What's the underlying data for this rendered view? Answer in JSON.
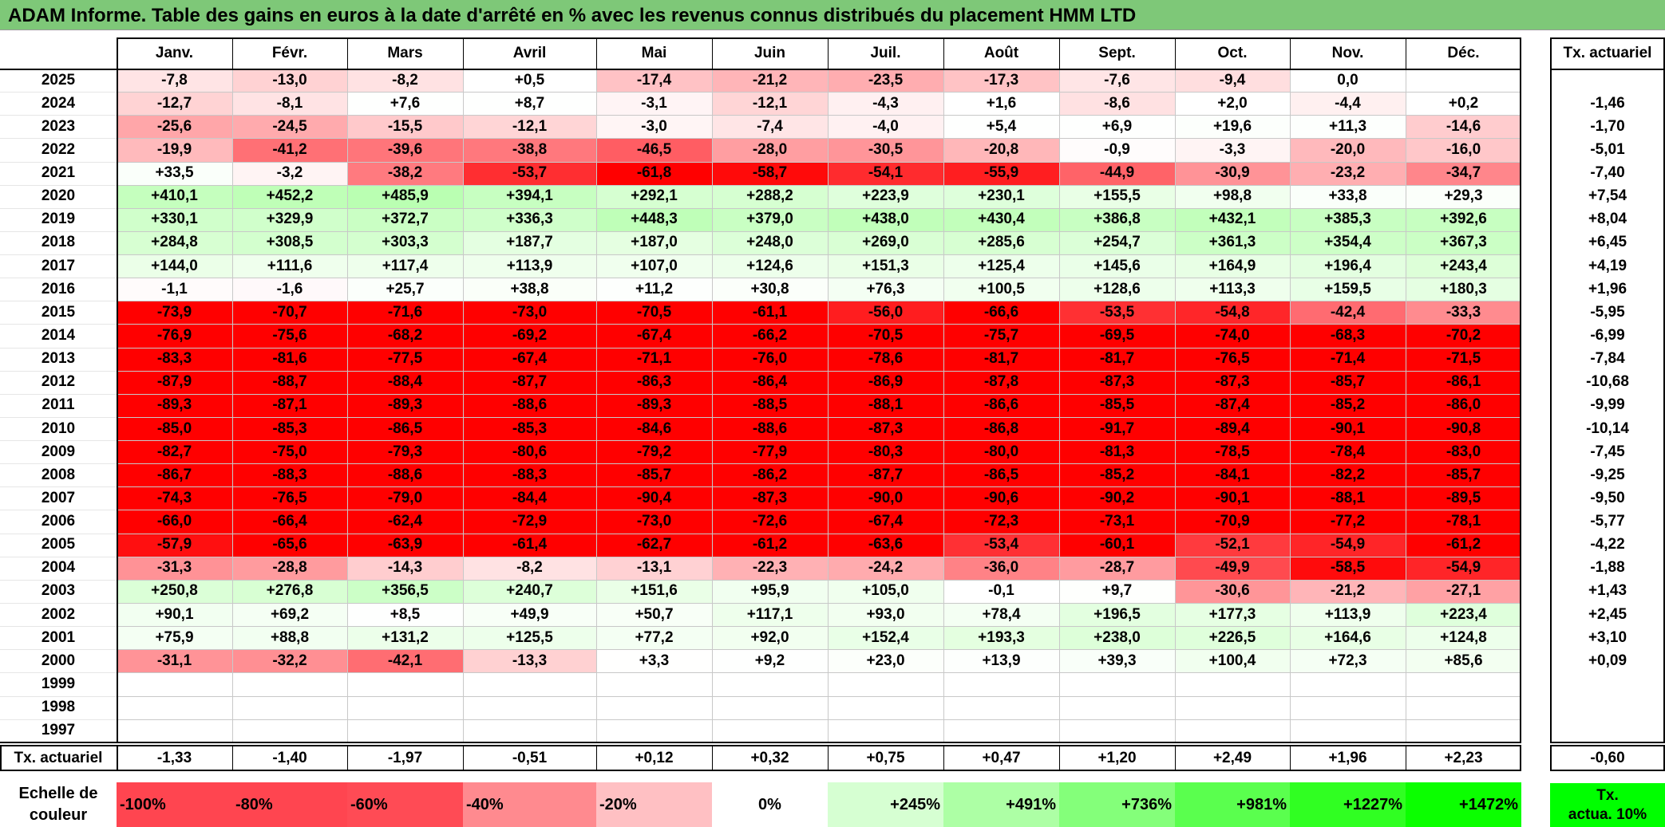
{
  "title": "ADAM Informe. Table des gains en euros à la date d'arrêté en % avec les revenus connus distribués du placement HMM LTD",
  "chart_data": {
    "type": "heatmap",
    "months": [
      "Janv.",
      "Févr.",
      "Mars",
      "Avril",
      "Mai",
      "Juin",
      "Juil.",
      "Août",
      "Sept.",
      "Oct.",
      "Nov.",
      "Déc."
    ],
    "annual_header": "Tx. actuariel",
    "rows": [
      {
        "year": "2025",
        "values": [
          "-7,8",
          "-13,0",
          "-8,2",
          "+0,5",
          "-17,4",
          "-21,2",
          "-23,5",
          "-17,3",
          "-7,6",
          "-9,4",
          "0,0",
          ""
        ],
        "annual": ""
      },
      {
        "year": "2024",
        "values": [
          "-12,7",
          "-8,1",
          "+7,6",
          "+8,7",
          "-3,1",
          "-12,1",
          "-4,3",
          "+1,6",
          "-8,6",
          "+2,0",
          "-4,4",
          "+0,2"
        ],
        "annual": "-1,46"
      },
      {
        "year": "2023",
        "values": [
          "-25,6",
          "-24,5",
          "-15,5",
          "-12,1",
          "-3,0",
          "-7,4",
          "-4,0",
          "+5,4",
          "+6,9",
          "+19,6",
          "+11,3",
          "-14,6"
        ],
        "annual": "-1,70"
      },
      {
        "year": "2022",
        "values": [
          "-19,9",
          "-41,2",
          "-39,6",
          "-38,8",
          "-46,5",
          "-28,0",
          "-30,5",
          "-20,8",
          "-0,9",
          "-3,3",
          "-20,0",
          "-16,0"
        ],
        "annual": "-5,01"
      },
      {
        "year": "2021",
        "values": [
          "+33,5",
          "-3,2",
          "-38,2",
          "-53,7",
          "-61,8",
          "-58,7",
          "-54,1",
          "-55,9",
          "-44,9",
          "-30,9",
          "-23,2",
          "-34,7"
        ],
        "annual": "-7,40"
      },
      {
        "year": "2020",
        "values": [
          "+410,1",
          "+452,2",
          "+485,9",
          "+394,1",
          "+292,1",
          "+288,2",
          "+223,9",
          "+230,1",
          "+155,5",
          "+98,8",
          "+33,8",
          "+29,3"
        ],
        "annual": "+7,54"
      },
      {
        "year": "2019",
        "values": [
          "+330,1",
          "+329,9",
          "+372,7",
          "+336,3",
          "+448,3",
          "+379,0",
          "+438,0",
          "+430,4",
          "+386,8",
          "+432,1",
          "+385,3",
          "+392,6"
        ],
        "annual": "+8,04"
      },
      {
        "year": "2018",
        "values": [
          "+284,8",
          "+308,5",
          "+303,3",
          "+187,7",
          "+187,0",
          "+248,0",
          "+269,0",
          "+285,6",
          "+254,7",
          "+361,3",
          "+354,4",
          "+367,3"
        ],
        "annual": "+6,45"
      },
      {
        "year": "2017",
        "values": [
          "+144,0",
          "+111,6",
          "+117,4",
          "+113,9",
          "+107,0",
          "+124,6",
          "+151,3",
          "+125,4",
          "+145,6",
          "+164,9",
          "+196,4",
          "+243,4"
        ],
        "annual": "+4,19"
      },
      {
        "year": "2016",
        "values": [
          "-1,1",
          "-1,6",
          "+25,7",
          "+38,8",
          "+11,2",
          "+30,8",
          "+76,3",
          "+100,5",
          "+128,6",
          "+113,3",
          "+159,5",
          "+180,3"
        ],
        "annual": "+1,96"
      },
      {
        "year": "2015",
        "values": [
          "-73,9",
          "-70,7",
          "-71,6",
          "-73,0",
          "-70,5",
          "-61,1",
          "-56,0",
          "-66,6",
          "-53,5",
          "-54,8",
          "-42,4",
          "-33,3"
        ],
        "annual": "-5,95"
      },
      {
        "year": "2014",
        "values": [
          "-76,9",
          "-75,6",
          "-68,2",
          "-69,2",
          "-67,4",
          "-66,2",
          "-70,5",
          "-75,7",
          "-69,5",
          "-74,0",
          "-68,3",
          "-70,2"
        ],
        "annual": "-6,99"
      },
      {
        "year": "2013",
        "values": [
          "-83,3",
          "-81,6",
          "-77,5",
          "-67,4",
          "-71,1",
          "-76,0",
          "-78,6",
          "-81,7",
          "-81,7",
          "-76,5",
          "-71,4",
          "-71,5"
        ],
        "annual": "-7,84"
      },
      {
        "year": "2012",
        "values": [
          "-87,9",
          "-88,7",
          "-88,4",
          "-87,7",
          "-86,3",
          "-86,4",
          "-86,9",
          "-87,8",
          "-87,3",
          "-87,3",
          "-85,7",
          "-86,1"
        ],
        "annual": "-10,68"
      },
      {
        "year": "2011",
        "values": [
          "-89,3",
          "-87,1",
          "-89,3",
          "-88,6",
          "-89,3",
          "-88,5",
          "-88,1",
          "-86,6",
          "-85,5",
          "-87,4",
          "-85,2",
          "-86,0"
        ],
        "annual": "-9,99"
      },
      {
        "year": "2010",
        "values": [
          "-85,0",
          "-85,3",
          "-86,5",
          "-85,3",
          "-84,6",
          "-88,6",
          "-87,3",
          "-86,8",
          "-91,7",
          "-89,4",
          "-90,1",
          "-90,8"
        ],
        "annual": "-10,14"
      },
      {
        "year": "2009",
        "values": [
          "-82,7",
          "-75,0",
          "-79,3",
          "-80,6",
          "-79,2",
          "-77,9",
          "-80,3",
          "-80,0",
          "-81,3",
          "-78,5",
          "-78,4",
          "-83,0"
        ],
        "annual": "-7,45"
      },
      {
        "year": "2008",
        "values": [
          "-86,7",
          "-88,3",
          "-88,6",
          "-88,3",
          "-85,7",
          "-86,2",
          "-87,7",
          "-86,5",
          "-85,2",
          "-84,1",
          "-82,2",
          "-85,7"
        ],
        "annual": "-9,25"
      },
      {
        "year": "2007",
        "values": [
          "-74,3",
          "-76,5",
          "-79,0",
          "-84,4",
          "-90,4",
          "-87,3",
          "-90,0",
          "-90,6",
          "-90,2",
          "-90,1",
          "-88,1",
          "-89,5"
        ],
        "annual": "-9,50"
      },
      {
        "year": "2006",
        "values": [
          "-66,0",
          "-66,4",
          "-62,4",
          "-72,9",
          "-73,0",
          "-72,6",
          "-67,4",
          "-72,3",
          "-73,1",
          "-70,9",
          "-77,2",
          "-78,1"
        ],
        "annual": "-5,77"
      },
      {
        "year": "2005",
        "values": [
          "-57,9",
          "-65,6",
          "-63,9",
          "-61,4",
          "-62,7",
          "-61,2",
          "-63,6",
          "-53,4",
          "-60,1",
          "-52,1",
          "-54,9",
          "-61,2"
        ],
        "annual": "-4,22"
      },
      {
        "year": "2004",
        "values": [
          "-31,3",
          "-28,8",
          "-14,3",
          "-8,2",
          "-13,1",
          "-22,3",
          "-24,2",
          "-36,0",
          "-28,7",
          "-49,9",
          "-58,5",
          "-54,9"
        ],
        "annual": "-1,88"
      },
      {
        "year": "2003",
        "values": [
          "+250,8",
          "+276,8",
          "+356,5",
          "+240,7",
          "+151,6",
          "+95,9",
          "+105,0",
          "-0,1",
          "+9,7",
          "-30,6",
          "-21,2",
          "-27,1"
        ],
        "annual": "+1,43"
      },
      {
        "year": "2002",
        "values": [
          "+90,1",
          "+69,2",
          "+8,5",
          "+49,9",
          "+50,7",
          "+117,1",
          "+93,0",
          "+78,4",
          "+196,5",
          "+177,3",
          "+113,9",
          "+223,4"
        ],
        "annual": "+2,45"
      },
      {
        "year": "2001",
        "values": [
          "+75,9",
          "+88,8",
          "+131,2",
          "+125,5",
          "+77,2",
          "+92,0",
          "+152,4",
          "+193,3",
          "+238,0",
          "+226,5",
          "+164,6",
          "+124,8"
        ],
        "annual": "+3,10"
      },
      {
        "year": "2000",
        "values": [
          "-31,1",
          "-32,2",
          "-42,1",
          "-13,3",
          "+3,3",
          "+9,2",
          "+23,0",
          "+13,9",
          "+39,3",
          "+100,4",
          "+72,3",
          "+85,6"
        ],
        "annual": "+0,09"
      },
      {
        "year": "1999",
        "values": [
          "",
          "",
          "",
          "",
          "",
          "",
          "",
          "",
          "",
          "",
          "",
          ""
        ],
        "annual": ""
      },
      {
        "year": "1998",
        "values": [
          "",
          "",
          "",
          "",
          "",
          "",
          "",
          "",
          "",
          "",
          "",
          ""
        ],
        "annual": ""
      },
      {
        "year": "1997",
        "values": [
          "",
          "",
          "",
          "",
          "",
          "",
          "",
          "",
          "",
          "",
          "",
          ""
        ],
        "annual": ""
      }
    ],
    "footer": {
      "label": "Tx. actuariel",
      "values": [
        "-1,33",
        "-1,40",
        "-1,97",
        "-0,51",
        "+0,12",
        "+0,32",
        "+0,75",
        "+0,47",
        "+1,20",
        "+2,49",
        "+1,96",
        "+2,23"
      ],
      "annual": "-0,60"
    },
    "legend": {
      "label_line1": "Echelle de",
      "label_line2": "couleur",
      "stops": [
        {
          "label": "-100%",
          "color": "#ff4550"
        },
        {
          "label": "-80%",
          "color": "#ff4550"
        },
        {
          "label": "-60%",
          "color": "#ff4b55"
        },
        {
          "label": "-40%",
          "color": "#ff8a8f"
        },
        {
          "label": "-20%",
          "color": "#ffc0c3"
        },
        {
          "label": "0%",
          "color": "#ffffff"
        },
        {
          "label": "+245%",
          "color": "#d6ffd2"
        },
        {
          "label": "+491%",
          "color": "#adffa5"
        },
        {
          "label": "+736%",
          "color": "#84ff7a"
        },
        {
          "label": "+981%",
          "color": "#5aff4e"
        },
        {
          "label": "+1227%",
          "color": "#30ff22"
        },
        {
          "label": "+1472%",
          "color": "#0bff00"
        }
      ],
      "annual_line1": "Tx.",
      "annual_line2": "actua. 10%"
    }
  }
}
